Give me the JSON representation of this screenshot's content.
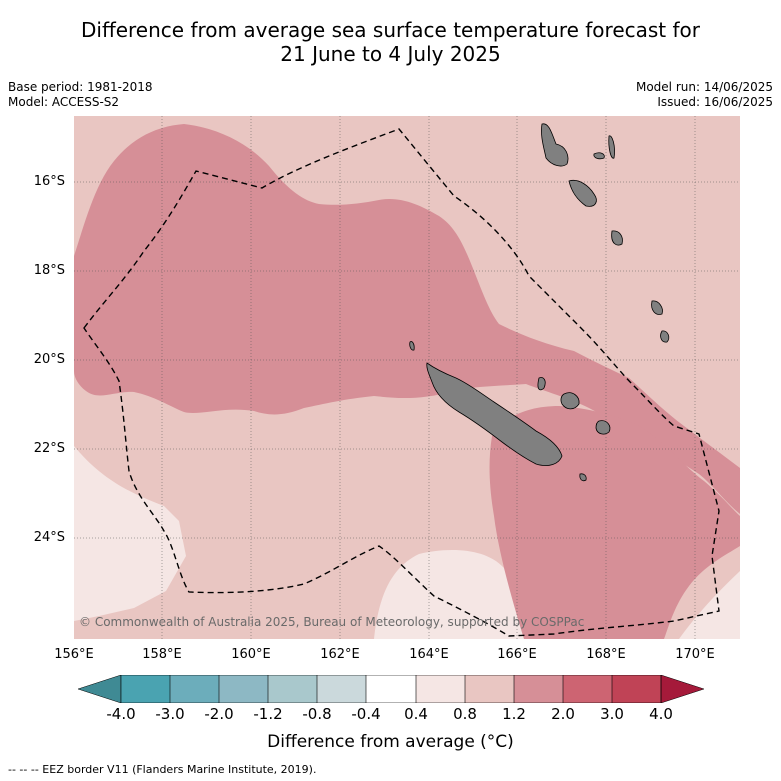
{
  "title": {
    "line1": "Difference from average sea surface temperature forecast for",
    "line2": "21 June to 4 July 2025"
  },
  "meta": {
    "base_period": "Base period: 1981-2018",
    "model": "Model: ACCESS-S2",
    "model_run": "Model run: 14/06/2025",
    "issued": "Issued: 16/06/2025"
  },
  "axes": {
    "y_ticks": [
      "16°S",
      "18°S",
      "20°S",
      "22°S",
      "24°S"
    ],
    "x_ticks": [
      "156°E",
      "158°E",
      "160°E",
      "162°E",
      "164°E",
      "166°E",
      "168°E",
      "170°E"
    ]
  },
  "copyright": "© Commonwealth of Australia 2025, Bureau of Meteorology, supported by COSPPac",
  "colorbar": {
    "labels": [
      "-4.0",
      "-3.0",
      "-2.0",
      "-1.2",
      "-0.8",
      "-0.4",
      "0.4",
      "0.8",
      "1.2",
      "2.0",
      "3.0",
      "4.0"
    ],
    "colors": [
      "#3f8a94",
      "#4aa3b1",
      "#6cadbb",
      "#8db8c4",
      "#a9c8cc",
      "#cbd9dc",
      "#ffffff",
      "#f5e6e4",
      "#e9c6c2",
      "#d68f97",
      "#cd6472",
      "#c04356",
      "#a51a3a"
    ],
    "title": "Difference from average (°C)"
  },
  "map_colors": {
    "band_0_4_0_8": "#f5e6e4",
    "band_0_8_1_2": "#e9c6c2",
    "band_1_2_2_0": "#d68f97",
    "land": "#808080"
  },
  "footer": "-- -- -- EEZ border V11 (Flanders Marine Institute, 2019)."
}
